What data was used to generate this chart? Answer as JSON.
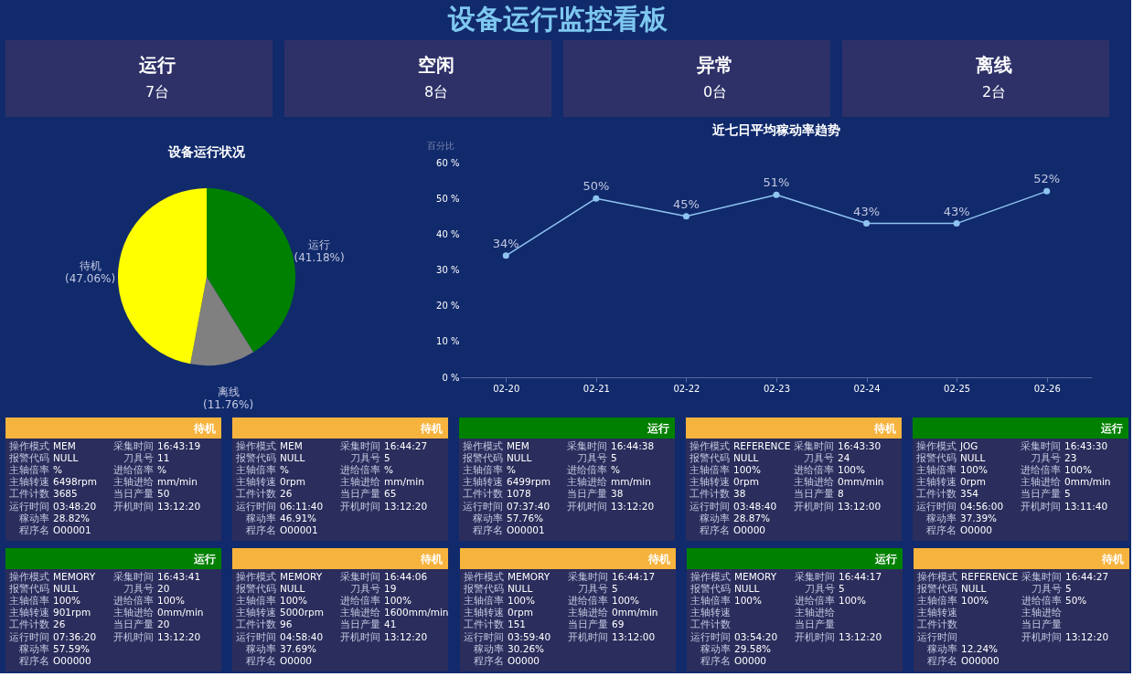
{
  "chart_data": [
    {
      "type": "other",
      "title": "设备运行监控看板",
      "categories": [
        "运行",
        "空闲",
        "异常",
        "离线"
      ],
      "value_labels": [
        "7台",
        "8台",
        "0台",
        "2台"
      ]
    },
    {
      "type": "pie",
      "title": "设备运行状况",
      "categories": [
        "运行",
        "离线",
        "待机"
      ],
      "values": [
        41.18,
        11.76,
        47.06
      ],
      "value_labels": [
        "(41.18%)",
        "(11.76%)",
        "(47.06%)"
      ],
      "colors": [
        "#008000",
        "#808080",
        "#ffff00"
      ]
    },
    {
      "type": "line",
      "title": "近七日平均稼动率趋势",
      "ylabel": "百分比",
      "categories": [
        "02-20",
        "02-21",
        "02-22",
        "02-23",
        "02-24",
        "02-25",
        "02-26"
      ],
      "series": [
        {
          "color": "#8fc4f0",
          "values": [
            34,
            50,
            45,
            51,
            43,
            43,
            52
          ]
        }
      ],
      "value_labels": [
        "34%",
        "50%",
        "45%",
        "51%",
        "43%",
        "43%",
        "52%"
      ],
      "ylim": [
        0,
        60
      ],
      "yticks": [
        {
          "value": 0,
          "label": "0 %"
        },
        {
          "value": 10,
          "label": "10 %"
        },
        {
          "value": 20,
          "label": "20 %"
        },
        {
          "value": 30,
          "label": "30 %"
        },
        {
          "value": 40,
          "label": "40 %"
        },
        {
          "value": 50,
          "label": "50 %"
        },
        {
          "value": 60,
          "label": "60 %"
        }
      ],
      "marker": "circle"
    },
    {
      "type": "other",
      "title": "待机",
      "colors": [
        "#f6b33d"
      ],
      "annotations": [
        "操作模式",
        "MEM",
        "报警代码",
        "NULL",
        "主轴倍率",
        "%",
        "主轴转速",
        "6498rpm",
        "工件计数",
        "3685",
        "运行时间",
        "03:48:20",
        "稼动率",
        "28.82%",
        "程序名",
        "O00001",
        "采集时间",
        "16:43:19",
        "刀具号",
        "11",
        "进给倍率",
        "%",
        "主轴进给",
        "mm/min",
        "当日产量",
        "50",
        "开机时间",
        "13:12:20"
      ]
    },
    {
      "type": "other",
      "title": "待机",
      "colors": [
        "#f6b33d"
      ],
      "annotations": [
        "操作模式",
        "MEM",
        "报警代码",
        "NULL",
        "主轴倍率",
        "%",
        "主轴转速",
        "0rpm",
        "工件计数",
        "26",
        "运行时间",
        "06:11:40",
        "稼动率",
        "46.91%",
        "程序名",
        "O00001",
        "采集时间",
        "16:44:27",
        "刀具号",
        "5",
        "进给倍率",
        "%",
        "主轴进给",
        "mm/min",
        "当日产量",
        "65",
        "开机时间",
        "13:12:20"
      ]
    },
    {
      "type": "other",
      "title": "运行",
      "colors": [
        "#008000"
      ],
      "annotations": [
        "操作模式",
        "MEM",
        "报警代码",
        "NULL",
        "主轴倍率",
        "%",
        "主轴转速",
        "6499rpm",
        "工件计数",
        "1078",
        "运行时间",
        "07:37:40",
        "稼动率",
        "57.76%",
        "程序名",
        "O00001",
        "采集时间",
        "16:44:38",
        "刀具号",
        "5",
        "进给倍率",
        "%",
        "主轴进给",
        "mm/min",
        "当日产量",
        "38",
        "开机时间",
        "13:12:20"
      ]
    },
    {
      "type": "other",
      "title": "待机",
      "colors": [
        "#f6b33d"
      ],
      "annotations": [
        "操作模式",
        "REFERENCE",
        "报警代码",
        "NULL",
        "主轴倍率",
        "100%",
        "主轴转速",
        "0rpm",
        "工件计数",
        "38",
        "运行时间",
        "03:48:40",
        "稼动率",
        "28.87%",
        "程序名",
        "O0000",
        "采集时间",
        "16:43:30",
        "刀具号",
        "24",
        "进给倍率",
        "100%",
        "主轴进给",
        "0mm/min",
        "当日产量",
        "8",
        "开机时间",
        "13:12:00"
      ]
    },
    {
      "type": "other",
      "title": "运行",
      "colors": [
        "#008000"
      ],
      "annotations": [
        "操作模式",
        "JOG",
        "报警代码",
        "NULL",
        "主轴倍率",
        "100%",
        "主轴转速",
        "0rpm",
        "工件计数",
        "354",
        "运行时间",
        "04:56:00",
        "稼动率",
        "37.39%",
        "程序名",
        "O0000",
        "采集时间",
        "16:43:30",
        "刀具号",
        "23",
        "进给倍率",
        "100%",
        "主轴进给",
        "0mm/min",
        "当日产量",
        "5",
        "开机时间",
        "13:11:40"
      ]
    },
    {
      "type": "other",
      "title": "运行",
      "colors": [
        "#008000"
      ],
      "annotations": [
        "操作模式",
        "MEMORY",
        "报警代码",
        "NULL",
        "主轴倍率",
        "100%",
        "主轴转速",
        "901rpm",
        "工件计数",
        "26",
        "运行时间",
        "07:36:20",
        "稼动率",
        "57.59%",
        "程序名",
        "O00000",
        "采集时间",
        "16:43:41",
        "刀具号",
        "20",
        "进给倍率",
        "100%",
        "主轴进给",
        "0mm/min",
        "当日产量",
        "20",
        "开机时间",
        "13:12:20"
      ]
    },
    {
      "type": "other",
      "title": "待机",
      "colors": [
        "#f6b33d"
      ],
      "annotations": [
        "操作模式",
        "MEMORY",
        "报警代码",
        "NULL",
        "主轴倍率",
        "100%",
        "主轴转速",
        "5000rpm",
        "工件计数",
        "96",
        "运行时间",
        "04:58:40",
        "稼动率",
        "37.69%",
        "程序名",
        "O0000",
        "采集时间",
        "16:44:06",
        "刀具号",
        "19",
        "进给倍率",
        "100%",
        "主轴进给",
        "1600mm/min",
        "当日产量",
        "41",
        "开机时间",
        "13:12:20"
      ]
    },
    {
      "type": "other",
      "title": "待机",
      "colors": [
        "#f6b33d"
      ],
      "annotations": [
        "操作模式",
        "MEMORY",
        "报警代码",
        "NULL",
        "主轴倍率",
        "100%",
        "主轴转速",
        "0rpm",
        "工件计数",
        "151",
        "运行时间",
        "03:59:40",
        "稼动率",
        "30.26%",
        "程序名",
        "O0000",
        "采集时间",
        "16:44:17",
        "刀具号",
        "5",
        "进给倍率",
        "100%",
        "主轴进给",
        "0mm/min",
        "当日产量",
        "69",
        "开机时间",
        "13:12:00"
      ]
    },
    {
      "type": "other",
      "title": "运行",
      "colors": [
        "#008000"
      ],
      "annotations": [
        "操作模式",
        "MEMORY",
        "报警代码",
        "NULL",
        "主轴倍率",
        "100%",
        "主轴转速",
        null,
        "工件计数",
        null,
        "运行时间",
        "03:54:20",
        "稼动率",
        "29.58%",
        "程序名",
        "O0000",
        "采集时间",
        "16:44:17",
        "刀具号",
        "5",
        "进给倍率",
        "100%",
        "主轴进给",
        null,
        "当日产量",
        null,
        "开机时间",
        "13:12:20"
      ]
    },
    {
      "type": "other",
      "title": "待机",
      "colors": [
        "#f6b33d"
      ],
      "annotations": [
        "操作模式",
        "REFERENCE",
        "报警代码",
        "NULL",
        "主轴倍率",
        "100%",
        "主轴转速",
        null,
        "工件计数",
        null,
        "运行时间",
        null,
        "稼动率",
        "12.24%",
        "程序名",
        "O00000",
        "采集时间",
        "16:44:27",
        "刀具号",
        "5",
        "进给倍率",
        "50%",
        "主轴进给",
        null,
        "当日产量",
        null,
        "开机时间",
        "13:12:20"
      ]
    }
  ]
}
